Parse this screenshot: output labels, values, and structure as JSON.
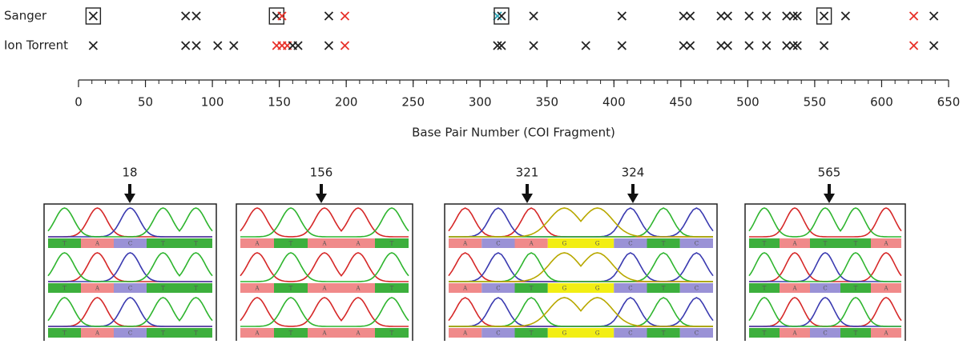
{
  "chart_data": {
    "type": "scatter",
    "categories": [
      "Sanger",
      "Ion Torrent"
    ],
    "series": [
      {
        "x": [
          11,
          80,
          88,
          148,
          152,
          187,
          199,
          313,
          316,
          340,
          406,
          452,
          457,
          480,
          485,
          501,
          514,
          529,
          534,
          537,
          557,
          573,
          624,
          639
        ],
        "colors": [
          "#222222",
          "#222222",
          "#222222",
          "#222222",
          "#e8322a",
          "#222222",
          "#e8322a",
          "#2aa6b8",
          "#222222",
          "#222222",
          "#222222",
          "#222222",
          "#222222",
          "#222222",
          "#222222",
          "#222222",
          "#222222",
          "#222222",
          "#222222",
          "#222222",
          "#222222",
          "#222222",
          "#e8322a",
          "#222222"
        ],
        "boxed": [
          true,
          false,
          false,
          true,
          false,
          false,
          false,
          false,
          true,
          false,
          false,
          false,
          false,
          false,
          false,
          false,
          false,
          false,
          false,
          false,
          true,
          false,
          false,
          false
        ]
      },
      {
        "x": [
          11,
          80,
          88,
          104,
          116,
          148,
          152,
          156,
          160,
          164,
          187,
          199,
          313,
          316,
          340,
          379,
          406,
          452,
          457,
          480,
          485,
          501,
          514,
          529,
          534,
          537,
          557,
          624,
          639
        ],
        "colors": [
          "#222222",
          "#222222",
          "#222222",
          "#222222",
          "#222222",
          "#e8322a",
          "#e8322a",
          "#e8322a",
          "#222222",
          "#222222",
          "#222222",
          "#e8322a",
          "#222222",
          "#222222",
          "#222222",
          "#222222",
          "#222222",
          "#222222",
          "#222222",
          "#222222",
          "#222222",
          "#222222",
          "#222222",
          "#222222",
          "#222222",
          "#222222",
          "#222222",
          "#e8322a",
          "#222222"
        ],
        "boxed": [
          false,
          false,
          false,
          false,
          false,
          false,
          false,
          false,
          false,
          false,
          false,
          false,
          false,
          false,
          false,
          false,
          false,
          false,
          false,
          false,
          false,
          false,
          false,
          false,
          false,
          false,
          false,
          false,
          false
        ]
      }
    ],
    "xlabel": "Base Pair Number (COI Fragment)",
    "xlim": [
      0,
      650
    ],
    "xticks": [
      0,
      50,
      100,
      150,
      200,
      250,
      300,
      350,
      400,
      450,
      500,
      550,
      600,
      650
    ],
    "xminorticks": [
      0,
      10,
      20,
      30,
      40,
      50,
      60,
      70,
      80,
      90,
      100,
      110,
      120,
      130,
      140,
      150,
      160,
      170,
      180,
      190,
      200,
      210,
      220,
      230,
      240,
      250,
      260,
      270,
      280,
      290,
      300,
      310,
      320,
      330,
      340,
      350,
      360,
      370,
      380,
      390,
      400,
      410,
      420,
      430,
      440,
      450,
      460,
      470,
      480,
      490,
      500,
      510,
      520,
      530,
      540,
      550,
      560,
      570,
      580,
      590,
      600,
      610,
      620,
      630,
      640,
      650
    ]
  },
  "panels": [
    {
      "arrows": [
        18
      ],
      "rows": [
        [
          "T",
          "A",
          "C",
          "T",
          "T"
        ],
        [
          "T",
          "A",
          "C",
          "T",
          "T"
        ],
        [
          "T",
          "A",
          "C",
          "T",
          "T"
        ]
      ]
    },
    {
      "arrows": [
        156
      ],
      "rows": [
        [
          "A",
          "T",
          "A",
          "A",
          "T"
        ],
        [
          "A",
          "T",
          "A",
          "A",
          "T"
        ],
        [
          "A",
          "T",
          "A",
          "A",
          "T"
        ]
      ]
    },
    {
      "arrows": [
        321,
        324
      ],
      "rows": [
        [
          "A",
          "C",
          "A",
          "G",
          "G",
          "C",
          "T",
          "C"
        ],
        [
          "A",
          "C",
          "T",
          "G",
          "G",
          "C",
          "T",
          "C"
        ],
        [
          "A",
          "C",
          "T",
          "G",
          "G",
          "C",
          "T",
          "C"
        ]
      ]
    },
    {
      "arrows": [
        565
      ],
      "rows": [
        [
          "T",
          "A",
          "T",
          "T",
          "A"
        ],
        [
          "T",
          "A",
          "C",
          "T",
          "A"
        ],
        [
          "T",
          "A",
          "C",
          "T",
          "A"
        ]
      ]
    }
  ]
}
